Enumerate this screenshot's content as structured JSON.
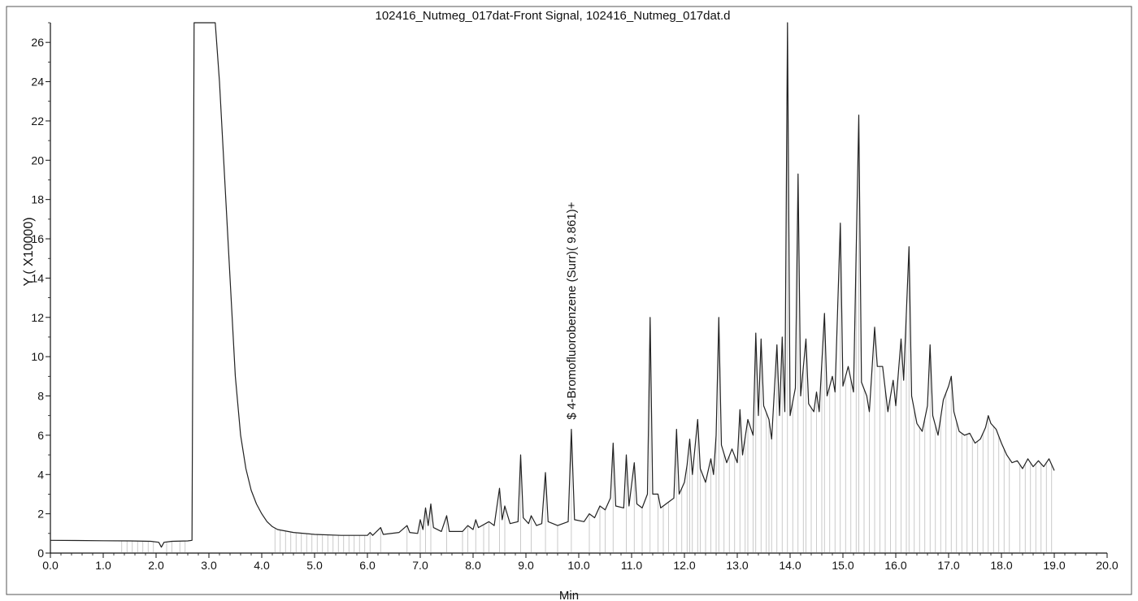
{
  "chart_data": {
    "type": "line",
    "title": "102416_Nutmeg_017dat-Front Signal, 102416_Nutmeg_017dat.d",
    "xlabel": "Min",
    "ylabel": "Y ( X10000)",
    "xlim": [
      0.0,
      20.0
    ],
    "ylim": [
      0,
      27
    ],
    "x_ticks": [
      0.0,
      1.0,
      2.0,
      3.0,
      4.0,
      5.0,
      6.0,
      7.0,
      8.0,
      9.0,
      10.0,
      11.0,
      12.0,
      13.0,
      14.0,
      15.0,
      16.0,
      17.0,
      18.0,
      19.0,
      20.0
    ],
    "x_tick_labels": [
      "0.0",
      "1.0",
      "2.0",
      "3.0",
      "4.0",
      "5.0",
      "6.0",
      "7.0",
      "8.0",
      "9.0",
      "10.0",
      "11.0",
      "12.0",
      "13.0",
      "14.0",
      "15.0",
      "16.0",
      "17.0",
      "18.0",
      "19.0",
      "20.0"
    ],
    "y_ticks": [
      0,
      2,
      4,
      6,
      8,
      10,
      12,
      14,
      16,
      18,
      20,
      22,
      24,
      26
    ],
    "y_tick_labels": [
      "0",
      "2",
      "4",
      "6",
      "8",
      "10",
      "12",
      "14",
      "16",
      "18",
      "20",
      "22",
      "24",
      "26"
    ],
    "annotation": {
      "text": "$ 4-Bromofluorobenzene (Surr)( 9.861)+",
      "x": 9.861,
      "y": 6.3
    },
    "series": [
      {
        "color": "#222222",
        "points": [
          [
            0.0,
            0.65
          ],
          [
            0.5,
            0.64
          ],
          [
            1.0,
            0.63
          ],
          [
            1.5,
            0.62
          ],
          [
            1.9,
            0.6
          ],
          [
            2.05,
            0.55
          ],
          [
            2.1,
            0.3
          ],
          [
            2.15,
            0.55
          ],
          [
            2.3,
            0.6
          ],
          [
            2.6,
            0.62
          ],
          [
            2.68,
            0.65
          ],
          [
            2.72,
            27
          ],
          [
            3.12,
            27
          ],
          [
            3.2,
            24
          ],
          [
            3.3,
            19
          ],
          [
            3.4,
            14
          ],
          [
            3.5,
            9
          ],
          [
            3.6,
            6
          ],
          [
            3.7,
            4.3
          ],
          [
            3.8,
            3.2
          ],
          [
            3.9,
            2.5
          ],
          [
            4.0,
            2.0
          ],
          [
            4.1,
            1.6
          ],
          [
            4.2,
            1.35
          ],
          [
            4.3,
            1.2
          ],
          [
            4.6,
            1.05
          ],
          [
            5.0,
            0.95
          ],
          [
            5.5,
            0.9
          ],
          [
            6.0,
            0.9
          ],
          [
            6.05,
            1.05
          ],
          [
            6.1,
            0.9
          ],
          [
            6.25,
            1.3
          ],
          [
            6.3,
            0.95
          ],
          [
            6.6,
            1.05
          ],
          [
            6.75,
            1.4
          ],
          [
            6.8,
            1.05
          ],
          [
            6.95,
            1.0
          ],
          [
            7.0,
            1.7
          ],
          [
            7.05,
            1.2
          ],
          [
            7.1,
            2.3
          ],
          [
            7.15,
            1.4
          ],
          [
            7.2,
            2.5
          ],
          [
            7.25,
            1.3
          ],
          [
            7.4,
            1.1
          ],
          [
            7.5,
            1.9
          ],
          [
            7.55,
            1.1
          ],
          [
            7.8,
            1.1
          ],
          [
            7.9,
            1.4
          ],
          [
            8.0,
            1.2
          ],
          [
            8.05,
            1.7
          ],
          [
            8.1,
            1.3
          ],
          [
            8.3,
            1.6
          ],
          [
            8.4,
            1.4
          ],
          [
            8.5,
            3.3
          ],
          [
            8.55,
            1.7
          ],
          [
            8.6,
            2.4
          ],
          [
            8.7,
            1.5
          ],
          [
            8.85,
            1.6
          ],
          [
            8.9,
            5.0
          ],
          [
            8.95,
            1.8
          ],
          [
            9.05,
            1.5
          ],
          [
            9.1,
            1.9
          ],
          [
            9.2,
            1.4
          ],
          [
            9.3,
            1.5
          ],
          [
            9.37,
            4.1
          ],
          [
            9.42,
            1.6
          ],
          [
            9.6,
            1.4
          ],
          [
            9.8,
            1.6
          ],
          [
            9.86,
            6.3
          ],
          [
            9.92,
            1.7
          ],
          [
            10.1,
            1.6
          ],
          [
            10.2,
            2.0
          ],
          [
            10.3,
            1.8
          ],
          [
            10.4,
            2.4
          ],
          [
            10.5,
            2.2
          ],
          [
            10.6,
            2.8
          ],
          [
            10.65,
            5.6
          ],
          [
            10.7,
            2.4
          ],
          [
            10.85,
            2.3
          ],
          [
            10.9,
            5.0
          ],
          [
            10.95,
            2.4
          ],
          [
            11.05,
            4.6
          ],
          [
            11.1,
            2.5
          ],
          [
            11.2,
            2.3
          ],
          [
            11.3,
            3.0
          ],
          [
            11.35,
            12.0
          ],
          [
            11.4,
            3.0
          ],
          [
            11.5,
            3.0
          ],
          [
            11.55,
            2.3
          ],
          [
            11.7,
            2.6
          ],
          [
            11.8,
            2.8
          ],
          [
            11.85,
            6.3
          ],
          [
            11.9,
            3.0
          ],
          [
            12.0,
            3.6
          ],
          [
            12.05,
            4.5
          ],
          [
            12.1,
            5.8
          ],
          [
            12.15,
            4.0
          ],
          [
            12.25,
            6.8
          ],
          [
            12.3,
            4.3
          ],
          [
            12.4,
            3.6
          ],
          [
            12.5,
            4.8
          ],
          [
            12.55,
            4.0
          ],
          [
            12.6,
            6.0
          ],
          [
            12.65,
            12.0
          ],
          [
            12.7,
            5.5
          ],
          [
            12.8,
            4.6
          ],
          [
            12.9,
            5.3
          ],
          [
            13.0,
            4.6
          ],
          [
            13.05,
            7.3
          ],
          [
            13.1,
            5.0
          ],
          [
            13.2,
            6.8
          ],
          [
            13.3,
            6.0
          ],
          [
            13.35,
            11.2
          ],
          [
            13.4,
            7.0
          ],
          [
            13.45,
            10.9
          ],
          [
            13.5,
            7.5
          ],
          [
            13.6,
            6.8
          ],
          [
            13.65,
            5.8
          ],
          [
            13.75,
            10.6
          ],
          [
            13.8,
            7.0
          ],
          [
            13.85,
            11.0
          ],
          [
            13.9,
            7.2
          ],
          [
            13.95,
            27
          ],
          [
            14.0,
            7.0
          ],
          [
            14.1,
            8.4
          ],
          [
            14.15,
            19.3
          ],
          [
            14.2,
            8.0
          ],
          [
            14.3,
            10.9
          ],
          [
            14.35,
            7.6
          ],
          [
            14.45,
            7.2
          ],
          [
            14.5,
            8.2
          ],
          [
            14.55,
            7.2
          ],
          [
            14.65,
            12.2
          ],
          [
            14.7,
            8.0
          ],
          [
            14.8,
            9.0
          ],
          [
            14.85,
            8.2
          ],
          [
            14.95,
            16.8
          ],
          [
            15.0,
            8.5
          ],
          [
            15.1,
            9.5
          ],
          [
            15.2,
            8.2
          ],
          [
            15.3,
            22.3
          ],
          [
            15.35,
            8.7
          ],
          [
            15.45,
            8.0
          ],
          [
            15.5,
            7.2
          ],
          [
            15.6,
            11.5
          ],
          [
            15.65,
            9.5
          ],
          [
            15.75,
            9.5
          ],
          [
            15.85,
            7.2
          ],
          [
            15.95,
            8.8
          ],
          [
            16.0,
            7.5
          ],
          [
            16.1,
            10.9
          ],
          [
            16.15,
            8.8
          ],
          [
            16.25,
            15.6
          ],
          [
            16.3,
            8.0
          ],
          [
            16.4,
            6.6
          ],
          [
            16.5,
            6.2
          ],
          [
            16.6,
            7.5
          ],
          [
            16.65,
            10.6
          ],
          [
            16.7,
            7.0
          ],
          [
            16.8,
            6.0
          ],
          [
            16.9,
            7.8
          ],
          [
            17.0,
            8.5
          ],
          [
            17.05,
            9.0
          ],
          [
            17.1,
            7.2
          ],
          [
            17.2,
            6.2
          ],
          [
            17.3,
            6.0
          ],
          [
            17.4,
            6.1
          ],
          [
            17.5,
            5.6
          ],
          [
            17.6,
            5.8
          ],
          [
            17.7,
            6.4
          ],
          [
            17.75,
            7.0
          ],
          [
            17.8,
            6.6
          ],
          [
            17.9,
            6.3
          ],
          [
            18.0,
            5.6
          ],
          [
            18.1,
            5.0
          ],
          [
            18.2,
            4.6
          ],
          [
            18.3,
            4.7
          ],
          [
            18.4,
            4.3
          ],
          [
            18.5,
            4.8
          ],
          [
            18.6,
            4.4
          ],
          [
            18.7,
            4.7
          ],
          [
            18.8,
            4.4
          ],
          [
            18.9,
            4.8
          ],
          [
            19.0,
            4.2
          ]
        ]
      }
    ],
    "integration_marks": [
      1.35,
      1.45,
      1.55,
      1.65,
      1.75,
      1.85,
      1.95,
      2.2,
      2.3,
      2.45,
      2.55,
      4.25,
      4.35,
      4.45,
      4.55,
      4.65,
      4.75,
      4.85,
      4.95,
      5.05,
      5.15,
      5.25,
      5.35,
      5.45,
      5.55,
      5.65,
      5.75,
      5.85,
      5.95,
      6.05,
      6.25,
      6.75,
      7.0,
      7.1,
      7.2,
      7.5,
      7.8,
      7.9,
      8.05,
      8.2,
      8.3,
      8.5,
      8.6,
      8.9,
      9.1,
      9.37,
      9.6,
      9.86,
      10.2,
      10.4,
      10.5,
      10.65,
      10.9,
      11.05,
      11.2,
      11.35,
      11.5,
      11.6,
      11.7,
      11.85,
      11.95,
      12.05,
      12.1,
      12.15,
      12.25,
      12.3,
      12.4,
      12.5,
      12.6,
      12.65,
      12.75,
      12.85,
      12.95,
      13.05,
      13.15,
      13.2,
      13.3,
      13.35,
      13.45,
      13.55,
      13.6,
      13.65,
      13.75,
      13.85,
      13.95,
      14.05,
      14.15,
      14.25,
      14.3,
      14.4,
      14.5,
      14.6,
      14.65,
      14.75,
      14.85,
      14.95,
      15.05,
      15.15,
      15.25,
      15.3,
      15.4,
      15.5,
      15.6,
      15.7,
      15.8,
      15.9,
      16.0,
      16.1,
      16.2,
      16.25,
      16.35,
      16.45,
      16.55,
      16.65,
      16.75,
      16.85,
      16.95,
      17.05,
      17.15,
      17.25,
      17.35,
      17.45,
      17.55,
      17.65,
      17.75,
      17.85,
      17.95,
      18.05,
      18.15,
      18.35,
      18.45,
      18.55,
      18.65,
      18.75,
      18.85,
      18.95
    ]
  }
}
